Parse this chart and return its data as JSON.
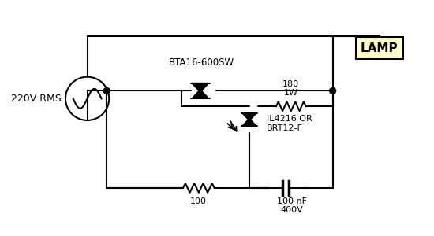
{
  "background_color": "#ffffff",
  "line_color": "#000000",
  "text_color": "#000000",
  "lamp_fill": "#ffffcc",
  "title": "",
  "labels": {
    "voltage": "220V RMS",
    "triac": "BTA16-600SW",
    "opto": "IL4216 OR\nBRT12-F",
    "resistor1": "180\n1W",
    "resistor2": "100",
    "cap": "100 nF\n400V",
    "lamp": "LAMP"
  }
}
